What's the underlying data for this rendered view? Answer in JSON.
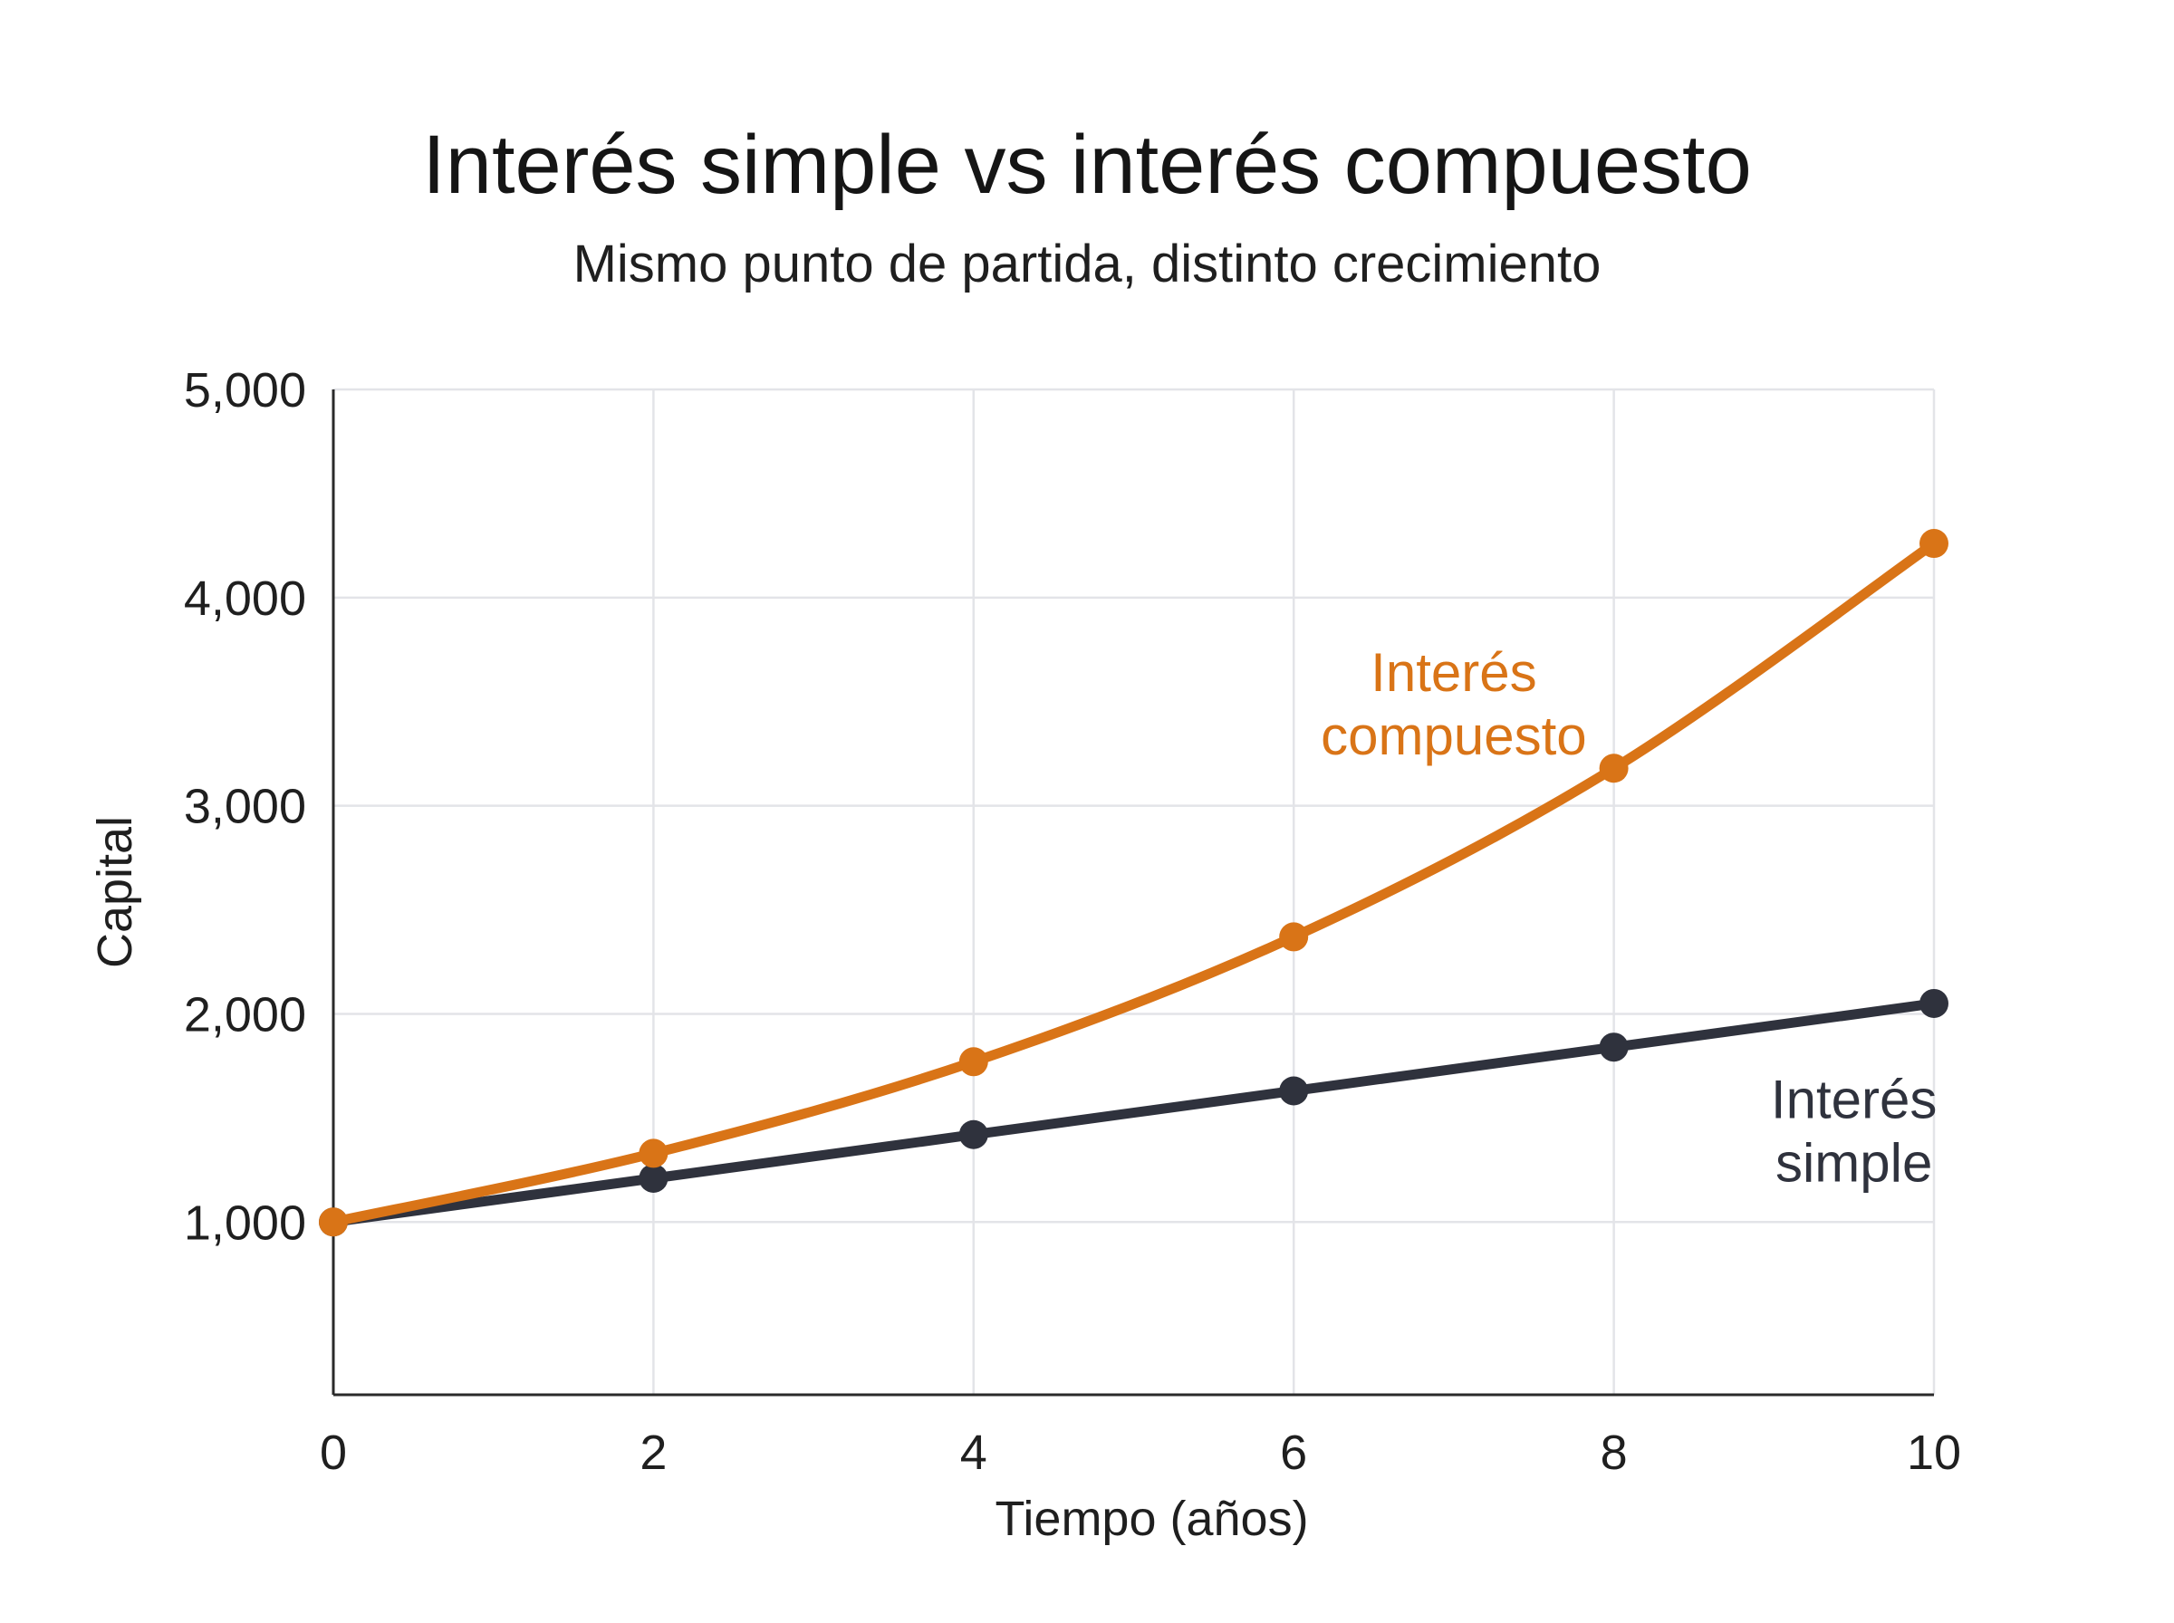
{
  "chart_data": {
    "type": "line",
    "title": "Interés simple vs interés compuesto",
    "subtitle": "Mismo punto de partida, distinto crecimiento",
    "xlabel": "Tiempo (años)",
    "ylabel": "Capital",
    "x": [
      0,
      2,
      4,
      6,
      8,
      10
    ],
    "xlim": [
      0,
      10
    ],
    "ylim": [
      170,
      5000
    ],
    "x_ticks": [
      "0",
      "2",
      "4",
      "6",
      "8",
      "10"
    ],
    "y_ticks": [
      {
        "value": 1000,
        "label": "1,000"
      },
      {
        "value": 2000,
        "label": "2,000"
      },
      {
        "value": 3000,
        "label": "3,000"
      },
      {
        "value": 4000,
        "label": "4,000"
      },
      {
        "value": 5000,
        "label": "5,000"
      }
    ],
    "grid": true,
    "series": [
      {
        "name_lines": [
          "Interés",
          "simple"
        ],
        "color": "#2f323d",
        "values": [
          1000,
          1210,
          1420,
          1630,
          1840,
          2050
        ],
        "label_anchor": {
          "x": 9.5,
          "y": 1500
        }
      },
      {
        "name_lines": [
          "Interés",
          "compuesto"
        ],
        "color": "#d97417",
        "values": [
          1000,
          1330,
          1770,
          2370,
          3180,
          4260
        ],
        "label_anchor": {
          "x": 7.0,
          "y": 3550
        }
      }
    ]
  }
}
